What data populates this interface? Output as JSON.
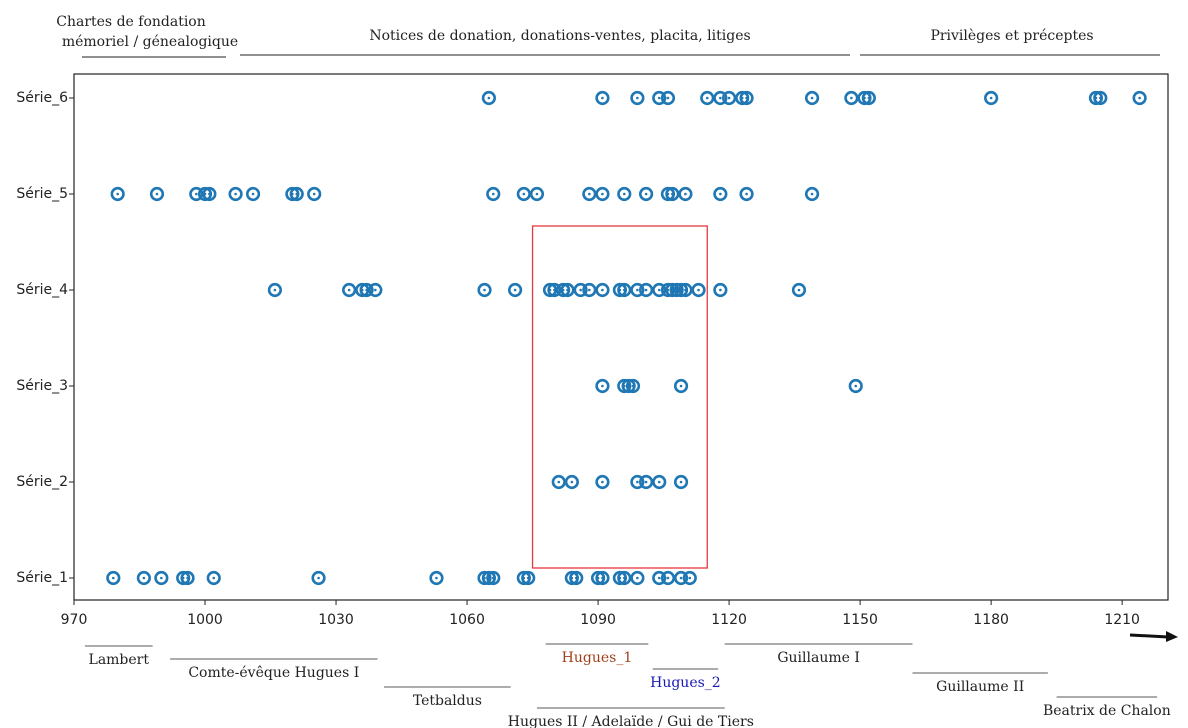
{
  "chart_data": {
    "type": "scatter",
    "header_labels": [
      [
        "Chartes de fondation",
        "mémoriel / génealogique"
      ],
      [
        "Notices de donation, donations-ventes, placita, litiges"
      ],
      [
        "Privilèges et préceptes"
      ]
    ],
    "categories": [
      "Série_1",
      "Série_2",
      "Série_3",
      "Série_4",
      "Série_5",
      "Série_6"
    ],
    "color": "#1f77b4",
    "x": [
      [
        979,
        986,
        990,
        995,
        996,
        1002,
        1026,
        1053,
        1064,
        1065,
        1066,
        1073,
        1074,
        1084,
        1085,
        1090,
        1091,
        1095,
        1096,
        1099,
        1104,
        1106,
        1109,
        1111
      ],
      [
        1081,
        1084,
        1091,
        1099,
        1101,
        1104,
        1109
      ],
      [
        1091,
        1096,
        1097,
        1098,
        1109,
        1149
      ],
      [
        1016,
        1033,
        1036,
        1037,
        1039,
        1064,
        1071,
        1079,
        1080,
        1082,
        1083,
        1086,
        1088,
        1091,
        1095,
        1096,
        1099,
        1101,
        1104,
        1106,
        1107,
        1108,
        1109,
        1110,
        1113,
        1118,
        1136
      ],
      [
        980,
        989,
        998,
        1000,
        1001,
        1007,
        1011,
        1020,
        1021,
        1025,
        1066,
        1073,
        1076,
        1088,
        1091,
        1096,
        1101,
        1106,
        1107,
        1110,
        1118,
        1124,
        1139
      ],
      [
        1065,
        1091,
        1099,
        1104,
        1106,
        1115,
        1118,
        1120,
        1123,
        1124,
        1139,
        1148,
        1151,
        1152,
        1180,
        1204,
        1205,
        1214
      ]
    ],
    "xlim": [
      970,
      1220.5
    ],
    "xticks": [
      970,
      1000,
      1030,
      1060,
      1090,
      1120,
      1150,
      1180,
      1210
    ],
    "highlight": {
      "x": [
        1075,
        1115
      ],
      "color": "#e8383d"
    },
    "periods": [
      {
        "label": "Lambert",
        "start": 972.5,
        "end": 988,
        "color": "#222222"
      },
      {
        "label": "Comte-évêque Hugues I",
        "start": 992,
        "end": 1039.5,
        "color": "#222222"
      },
      {
        "label": "Tetbaldus",
        "start": 1041,
        "end": 1070,
        "color": "#222222"
      },
      {
        "label": "Hugues_1",
        "start": 1078,
        "end": 1101.5,
        "color": "#a0401a"
      },
      {
        "label": "Hugues_2",
        "start": 1102.5,
        "end": 1117.5,
        "color": "#1a1ab4"
      },
      {
        "label": "Hugues II / Adelaïde / Gui de Tiers",
        "start": 1076,
        "end": 1119,
        "color": "#222222"
      },
      {
        "label": "Guillaume I",
        "start": 1119,
        "end": 1162,
        "color": "#222222"
      },
      {
        "label": "Guillaume II",
        "start": 1162,
        "end": 1193,
        "color": "#222222"
      },
      {
        "label": "Beatrix de Chalon",
        "start": 1195,
        "end": 1218,
        "color": "#222222"
      }
    ]
  }
}
